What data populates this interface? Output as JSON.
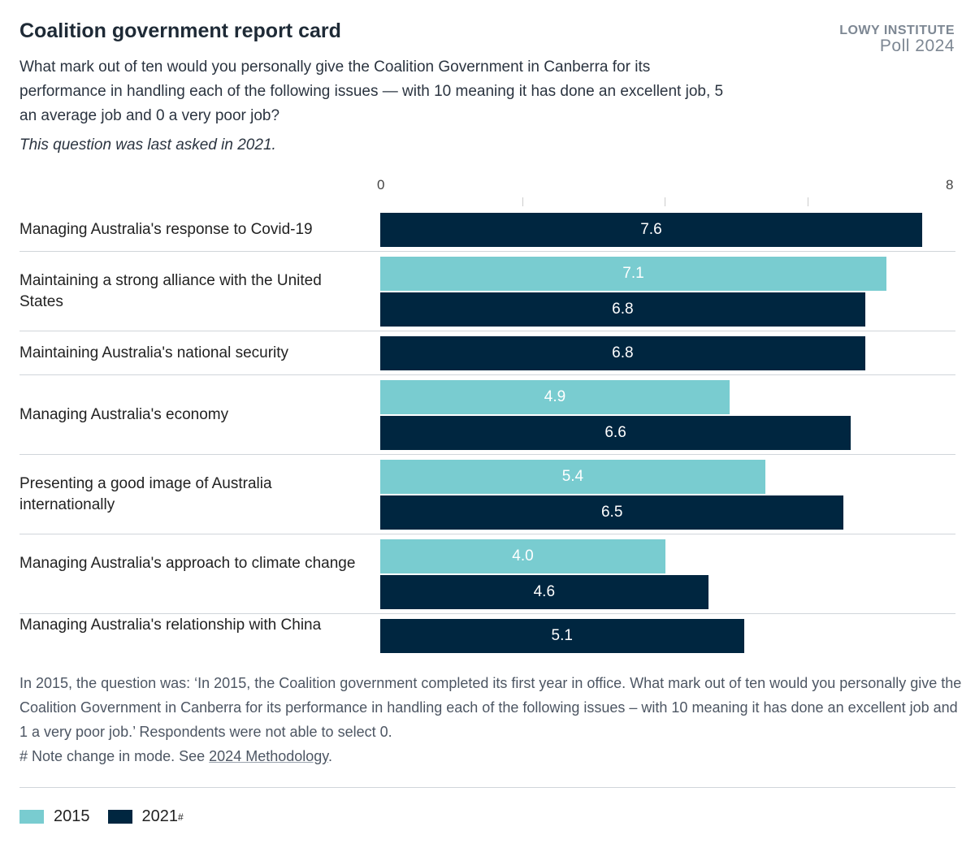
{
  "header": {
    "title": "Coalition government report card",
    "logo_line1": "LOWY INSTITUTE",
    "logo_line2": "Poll 2024",
    "subtitle": "What mark out of ten would you personally give the Coalition Government in Canberra for its performance in handling each of the following issues — with 10 meaning it has done an excellent job, 5 an average job and 0 a very poor job?",
    "note": "This question was last asked in 2021."
  },
  "chart_data": {
    "type": "bar",
    "orientation": "horizontal",
    "xlim": [
      0,
      8
    ],
    "ticks": [
      0,
      2,
      4,
      6,
      8
    ],
    "tick_labels": [
      "0",
      "",
      "",
      "",
      "8"
    ],
    "categories": [
      "Managing Australia's response to Covid-19",
      "Maintaining a strong alliance with the United States",
      "Maintaining Australia's national security",
      "Managing Australia's economy",
      "Presenting a good image of Australia internationally",
      "Managing Australia's approach to climate change",
      "Managing Australia's relationship with China"
    ],
    "series": [
      {
        "name": "2015",
        "color": "#79ccd0",
        "values": [
          null,
          7.1,
          null,
          4.9,
          5.4,
          4.0,
          null
        ]
      },
      {
        "name": "2021#",
        "color": "#002640",
        "values": [
          7.6,
          6.8,
          6.8,
          6.6,
          6.5,
          4.6,
          5.1
        ]
      }
    ],
    "legend": "bottom-left"
  },
  "footer": {
    "text": "In 2015, the question was: ‘In 2015, the Coalition government completed its first year in office. What mark out of ten would you personally give the Coalition Government in Canberra for its performance in handling each of the following issues – with 10 meaning it has done an excellent job and 1 a very poor job.’ Respondents were not able to select 0.",
    "note_prefix": "# Note change in mode. See ",
    "link": "2024 Methodology",
    "note_suffix": "."
  },
  "legend": {
    "items": [
      {
        "label": "2015",
        "color": "#79ccd0"
      },
      {
        "label": "2021",
        "sup": "#",
        "color": "#002640"
      }
    ]
  }
}
